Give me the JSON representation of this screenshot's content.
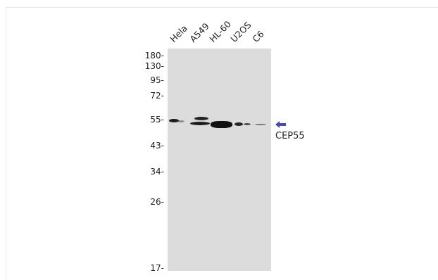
{
  "lanes": [
    "Hela",
    "A549",
    "HL-60",
    "U2OS",
    "C6"
  ],
  "mw_markers": [
    "180-",
    "130-",
    "95-",
    "72-",
    "55-",
    "43-",
    "34-",
    "26-",
    "17-"
  ],
  "target": "CEP55",
  "colors": {
    "membrane": "#dcdcdc",
    "band": "#111111",
    "arrow": "#4a4aa8"
  }
}
